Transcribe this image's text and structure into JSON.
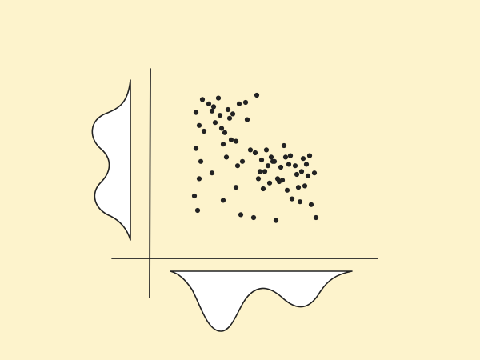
{
  "colors": {
    "background": "#fdf3cc",
    "ink": "#222222",
    "fill": "#ffffff"
  },
  "chart_data": {
    "type": "scatter",
    "title": "",
    "xlabel": "",
    "ylabel": "",
    "xlim": [
      0,
      100
    ],
    "ylim": [
      0,
      100
    ],
    "grid": false,
    "legend": "none",
    "marginals": {
      "top_left_y_density": "bimodal",
      "bottom_x_density": "bimodal"
    },
    "points": [
      [
        10,
        83
      ],
      [
        14,
        92
      ],
      [
        12,
        74
      ],
      [
        15,
        70
      ],
      [
        10,
        58
      ],
      [
        13,
        49
      ],
      [
        12,
        37
      ],
      [
        9,
        25
      ],
      [
        11,
        15
      ],
      [
        18,
        89
      ],
      [
        20,
        84
      ],
      [
        21,
        87
      ],
      [
        22,
        76
      ],
      [
        24,
        93
      ],
      [
        25,
        81
      ],
      [
        26,
        72
      ],
      [
        27,
        61
      ],
      [
        28,
        69
      ],
      [
        29,
        52
      ],
      [
        30,
        85
      ],
      [
        31,
        79
      ],
      [
        32,
        64
      ],
      [
        33,
        82
      ],
      [
        35,
        63
      ],
      [
        36,
        46
      ],
      [
        37,
        89
      ],
      [
        39,
        49
      ],
      [
        41,
        90
      ],
      [
        42,
        78
      ],
      [
        44,
        57
      ],
      [
        46,
        10
      ],
      [
        47,
        55
      ],
      [
        48,
        95
      ],
      [
        49,
        37
      ],
      [
        50,
        42
      ],
      [
        51,
        50
      ],
      [
        52,
        30
      ],
      [
        53,
        42
      ],
      [
        54,
        57
      ],
      [
        55,
        46
      ],
      [
        56,
        34
      ],
      [
        57,
        52
      ],
      [
        58,
        49
      ],
      [
        59,
        49
      ],
      [
        60,
        8
      ],
      [
        61,
        37
      ],
      [
        62,
        35
      ],
      [
        63,
        45
      ],
      [
        64,
        36
      ],
      [
        65,
        60
      ],
      [
        66,
        52
      ],
      [
        67,
        29
      ],
      [
        68,
        47
      ],
      [
        69,
        53
      ],
      [
        70,
        23
      ],
      [
        72,
        46
      ],
      [
        73,
        40
      ],
      [
        74,
        31
      ],
      [
        75,
        21
      ],
      [
        76,
        42
      ],
      [
        77,
        51
      ],
      [
        78,
        32
      ],
      [
        79,
        47
      ],
      [
        80,
        39
      ],
      [
        81,
        53
      ],
      [
        82,
        19
      ],
      [
        84,
        41
      ],
      [
        85,
        10
      ],
      [
        35,
        31
      ],
      [
        27,
        22
      ],
      [
        20,
        41
      ],
      [
        38,
        12
      ]
    ]
  }
}
